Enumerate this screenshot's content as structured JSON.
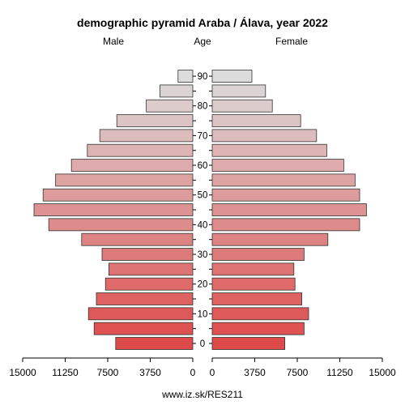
{
  "chart_data": {
    "type": "bar",
    "title": "demographic pyramid Araba / Álava, year 2022",
    "left_label": "Male",
    "center_label": "Age",
    "right_label": "Female",
    "footer": "www.iz.sk/RES211",
    "age_groups": [
      "0-4",
      "5-9",
      "10-14",
      "15-19",
      "20-24",
      "25-29",
      "30-34",
      "35-39",
      "40-44",
      "45-49",
      "50-54",
      "55-59",
      "60-64",
      "65-69",
      "70-74",
      "75-79",
      "80-84",
      "85-89",
      "90+"
    ],
    "age_tick_labels": [
      "0",
      "10",
      "20",
      "30",
      "40",
      "50",
      "60",
      "70",
      "80",
      "90"
    ],
    "age_tick_values": [
      0,
      10,
      20,
      30,
      40,
      50,
      60,
      70,
      80,
      90
    ],
    "x_tick_labels_left": [
      "15000",
      "11250",
      "7500",
      "3750",
      "0"
    ],
    "x_tick_labels_right": [
      "0",
      "3750",
      "7500",
      "11250",
      "15000"
    ],
    "xlim": [
      0,
      15000
    ],
    "series": [
      {
        "name": "Male",
        "values": [
          6800,
          8700,
          9200,
          8500,
          7700,
          7400,
          8000,
          9800,
          12700,
          14000,
          13200,
          12100,
          10700,
          9300,
          8200,
          6700,
          4100,
          2900,
          1300
        ]
      },
      {
        "name": "Female",
        "values": [
          6400,
          8100,
          8500,
          7900,
          7300,
          7200,
          8100,
          10200,
          13000,
          13600,
          13000,
          12600,
          11600,
          10100,
          9200,
          7800,
          5300,
          4700,
          3500
        ]
      }
    ],
    "colors": {
      "young": "#de4a4a",
      "old": "#dcdcdc",
      "stroke": "#333333"
    }
  }
}
